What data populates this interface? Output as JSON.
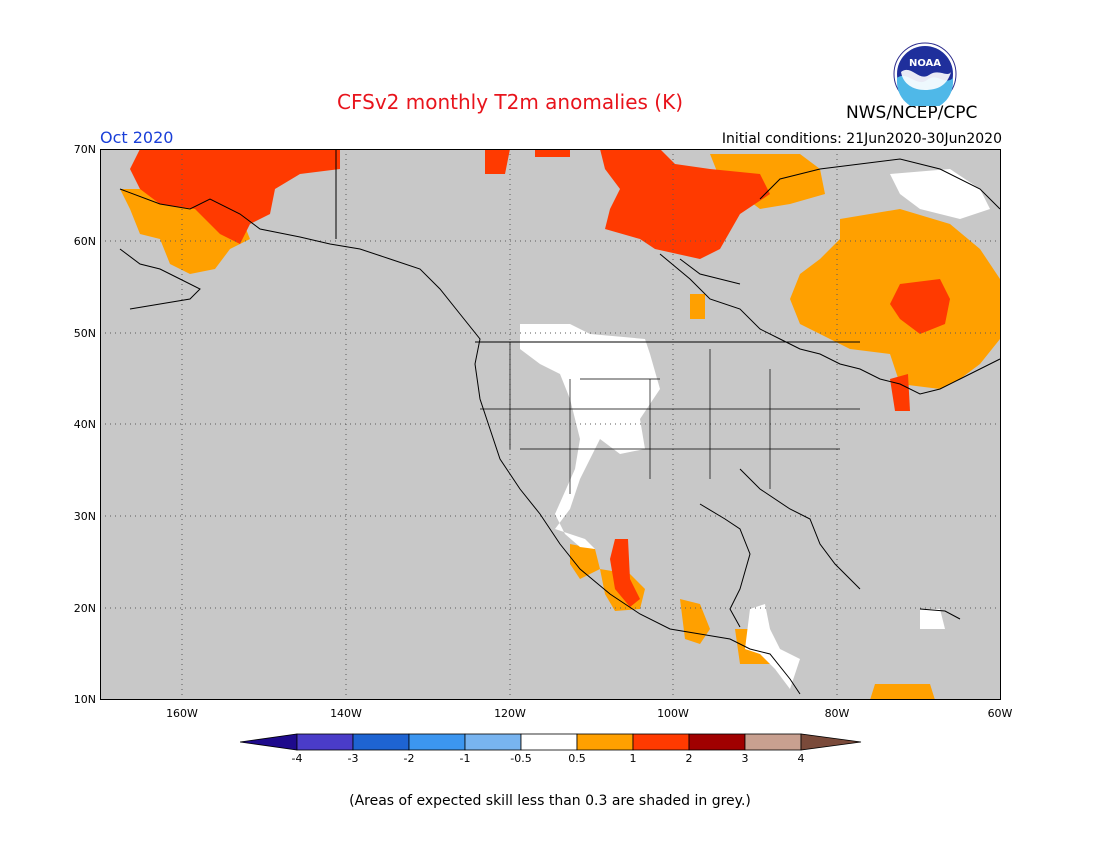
{
  "title": "CFSv2 monthly T2m anomalies (K)",
  "month_label": "Oct 2020",
  "initial_conditions": "Initial conditions: 21Jun2020-30Jun2020",
  "organization": "NWS/NCEP/CPC",
  "logo_text": "NOAA",
  "footnote": "(Areas of expected skill less than 0.3 are shaded in grey.)",
  "colors": {
    "ocean_land_background": "#c8c8c8",
    "near_zero": "#ffffff",
    "pos_0_5_to_1": "#ffa000",
    "pos_1_to_2": "#ff3a00",
    "pos_2_to_3": "#a00000",
    "pos_3_to_4": "#c8a090",
    "pos_gt_4": "#7a4a3a",
    "neg_lt_minus4": "#1e0a8c",
    "neg_minus4_to_minus3": "#4a3cc8",
    "neg_minus3_to_minus2": "#1e64d2",
    "neg_minus2_to_minus1": "#3c96f0",
    "neg_minus1_to_minus0_5": "#78b4f0"
  },
  "map": {
    "lat_labels": [
      "70N",
      "60N",
      "50N",
      "40N",
      "30N",
      "20N",
      "10N"
    ],
    "lon_labels": [
      "160W",
      "140W",
      "120W",
      "100W",
      "80W",
      "60W"
    ]
  },
  "colorbar": {
    "tick_labels": [
      "-4",
      "-3",
      "-2",
      "-1",
      "-0.5",
      "0.5",
      "1",
      "2",
      "3",
      "4"
    ]
  }
}
